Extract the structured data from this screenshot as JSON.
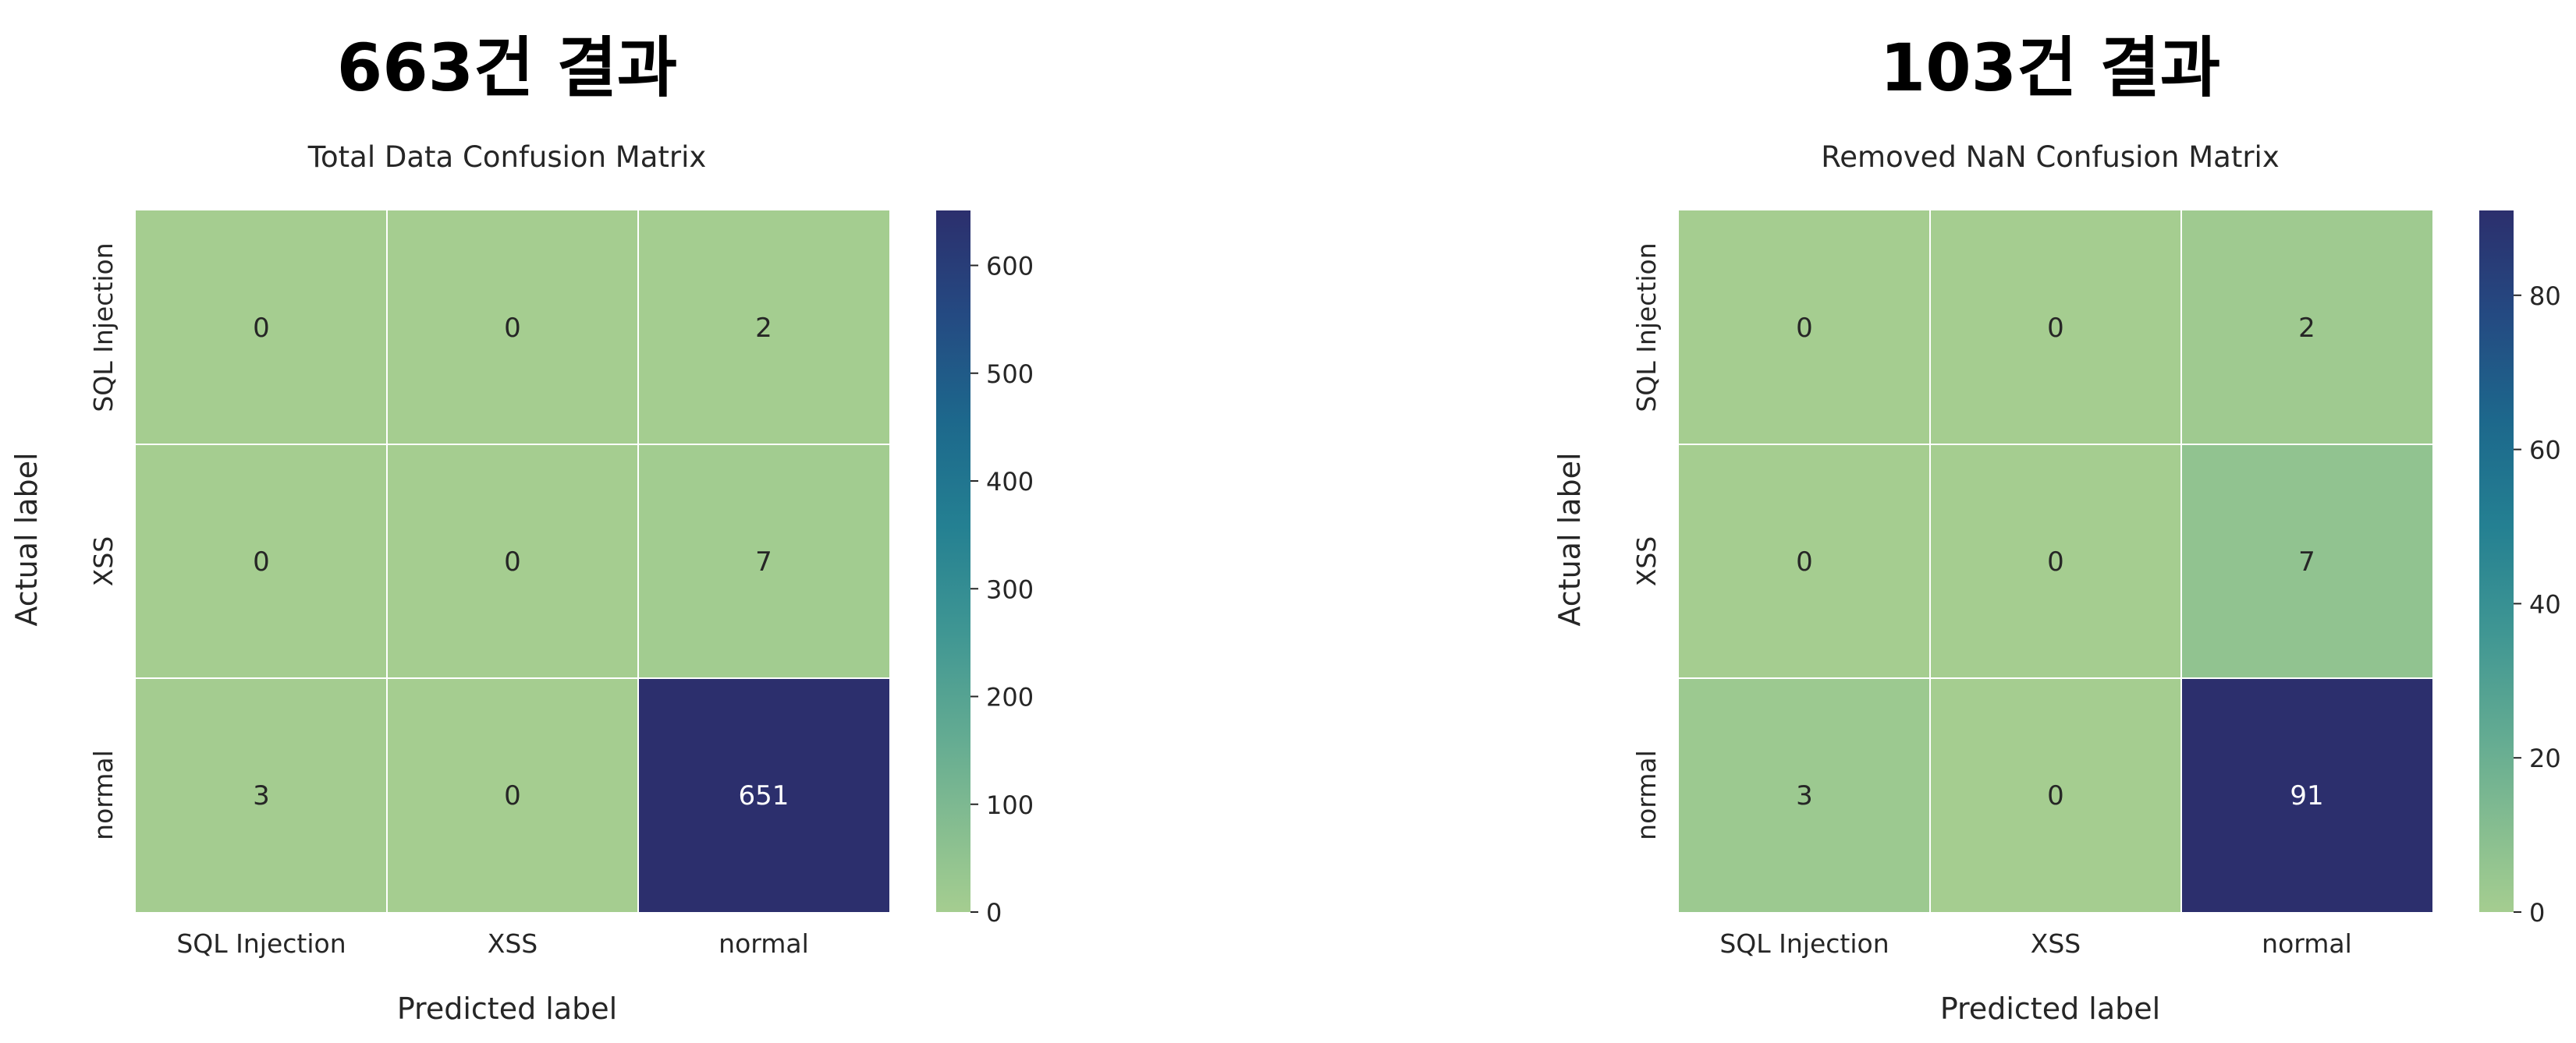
{
  "chart_data": [
    {
      "type": "heatmap",
      "suptitle": "663건 결과",
      "title": "Total Data Confusion Matrix",
      "xlabel": "Predicted label",
      "ylabel": "Actual label",
      "x_categories": [
        "SQL Injection",
        "XSS",
        "normal"
      ],
      "y_categories": [
        "SQL Injection",
        "XSS",
        "normal"
      ],
      "values": [
        [
          0,
          0,
          2
        ],
        [
          0,
          0,
          7
        ],
        [
          3,
          0,
          651
        ]
      ],
      "colorbar": {
        "min": 0,
        "max": 651,
        "ticks": [
          0,
          100,
          200,
          300,
          400,
          500,
          600
        ]
      },
      "colormap": "crest",
      "gridlines": true
    },
    {
      "type": "heatmap",
      "suptitle": "103건 결과",
      "title": "Removed NaN Confusion Matrix",
      "xlabel": "Predicted label",
      "ylabel": "Actual label",
      "x_categories": [
        "SQL Injection",
        "XSS",
        "normal"
      ],
      "y_categories": [
        "SQL Injection",
        "XSS",
        "normal"
      ],
      "values": [
        [
          0,
          0,
          2
        ],
        [
          0,
          0,
          7
        ],
        [
          3,
          0,
          91
        ]
      ],
      "colorbar": {
        "min": 0,
        "max": 91,
        "ticks": [
          0,
          20,
          40,
          60,
          80
        ]
      },
      "colormap": "crest",
      "gridlines": true
    }
  ]
}
